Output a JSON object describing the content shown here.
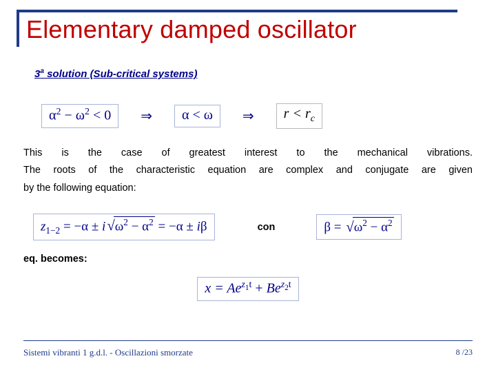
{
  "title": "Elementary damped oscillator",
  "subhead_prefix": "3",
  "subhead_sup": "a",
  "subhead_rest": " solution  (Sub-critical systems)",
  "eq1a_pre": "α",
  "eq1a_exp": "2",
  "eq1a_mid": " − ω",
  "eq1a_exp2": "2",
  "eq1a_post": " < 0",
  "arrow": "⇒",
  "eq1b": "α < ω",
  "eq1c_pre": "r < r",
  "eq1c_sub": "c",
  "para_line1": "This is the case of greatest interest to the mechanical vibrations.",
  "para_line2": "The roots of the characteristic equation are complex and conjugate are given",
  "para_line3": "by the following equation:",
  "eq2a_pre": "z",
  "eq2a_sub": "1−2",
  "eq2a_mid1": " = −α ± ",
  "eq2a_i": "i",
  "eq2a_rad_a": "ω",
  "eq2a_rad_exp": "2",
  "eq2a_rad_mid": " − α",
  "eq2a_rad_exp2": "2",
  "eq2a_tail": " = −α ± ",
  "eq2a_i2": "i",
  "eq2a_beta": "β",
  "con": "con",
  "eq2b_pre": "β = ",
  "eq2b_rad_a": "ω",
  "eq2b_rad_exp": "2",
  "eq2b_rad_mid": " − α",
  "eq2b_rad_exp2": "2",
  "para2": "eq. becomes:",
  "eq3_pre": "x = ",
  "eq3_A": "Ae",
  "eq3_z1": "z",
  "eq3_z1n": "1",
  "eq3_t": "t",
  "eq3_plus": " + ",
  "eq3_B": "Be",
  "eq3_z2": "z",
  "eq3_z2n": "2",
  "footer_left": "Sistemi vibranti 1 g.d.l. - Oscillazioni smorzate",
  "page_cur": "8",
  "page_sep": " /",
  "page_tot": "23",
  "colors": {
    "accent": "#1f3b8a",
    "title": "#c00000",
    "formula": "#000088"
  }
}
